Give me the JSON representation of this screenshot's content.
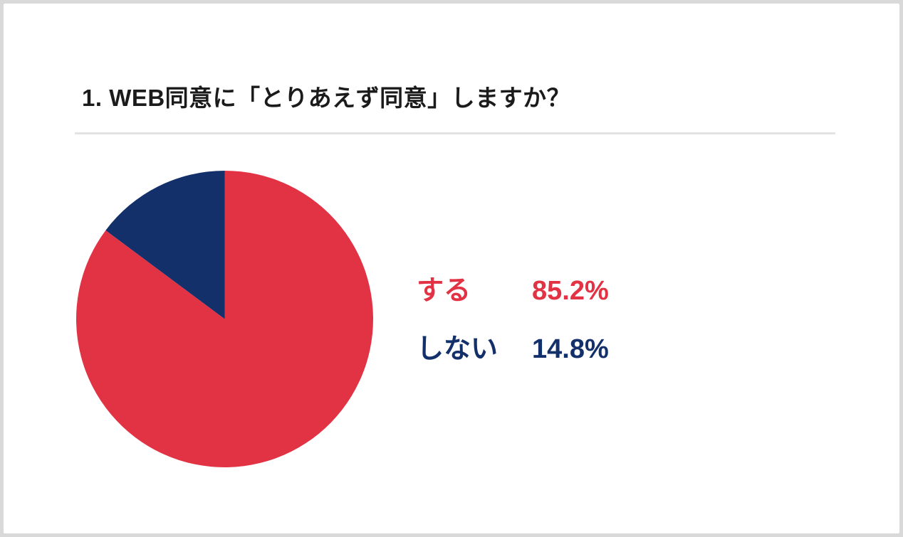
{
  "page": {
    "frame_color": "#d9d9d9",
    "card_color": "#ffffff",
    "divider_color": "#e3e3e3",
    "title_color": "#1b1b1b"
  },
  "chart_data": {
    "type": "pie",
    "title": "1. WEB同意に「とりあえず同意」しますか？",
    "categories": [
      "する",
      "しない"
    ],
    "values": [
      85.2,
      14.8
    ],
    "unit": "%",
    "colors": [
      "#e23345",
      "#13306b"
    ],
    "start_angle_deg": 0,
    "direction": "clockwise",
    "legend_position": "right",
    "legend": [
      {
        "label": "する",
        "value_label": "85.2%",
        "color": "#e23345"
      },
      {
        "label": "しない",
        "value_label": "14.8%",
        "color": "#13306b"
      }
    ]
  }
}
